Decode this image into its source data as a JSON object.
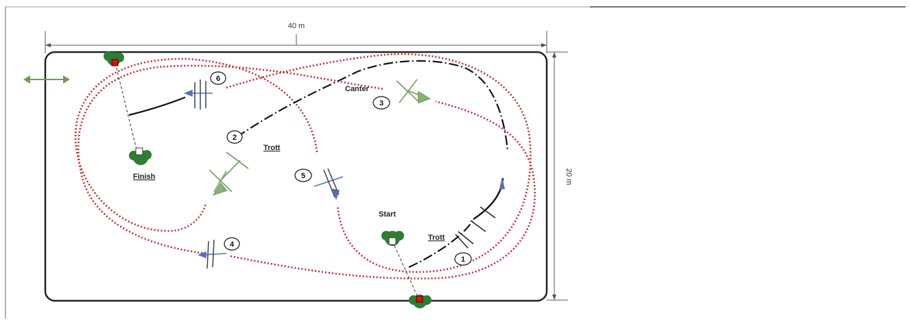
{
  "dimensions": {
    "width_label": "40 m",
    "height_label": "20 m"
  },
  "labels": {
    "canter": "Canter",
    "trott_upper": "Trott",
    "trott_lower": "Trott",
    "start": "Start",
    "finish": "Finish"
  },
  "obstacles": [
    {
      "number": "1"
    },
    {
      "number": "2"
    },
    {
      "number": "3"
    },
    {
      "number": "4"
    },
    {
      "number": "5"
    },
    {
      "number": "6"
    }
  ],
  "colors": {
    "path_red": "#cc2222",
    "arena_border": "#222222",
    "tree_green": "#2e7d32",
    "arrow_green": "#7aa36a",
    "obstacle_blue": "#5a6fb0",
    "marker_red": "#dd1111"
  }
}
